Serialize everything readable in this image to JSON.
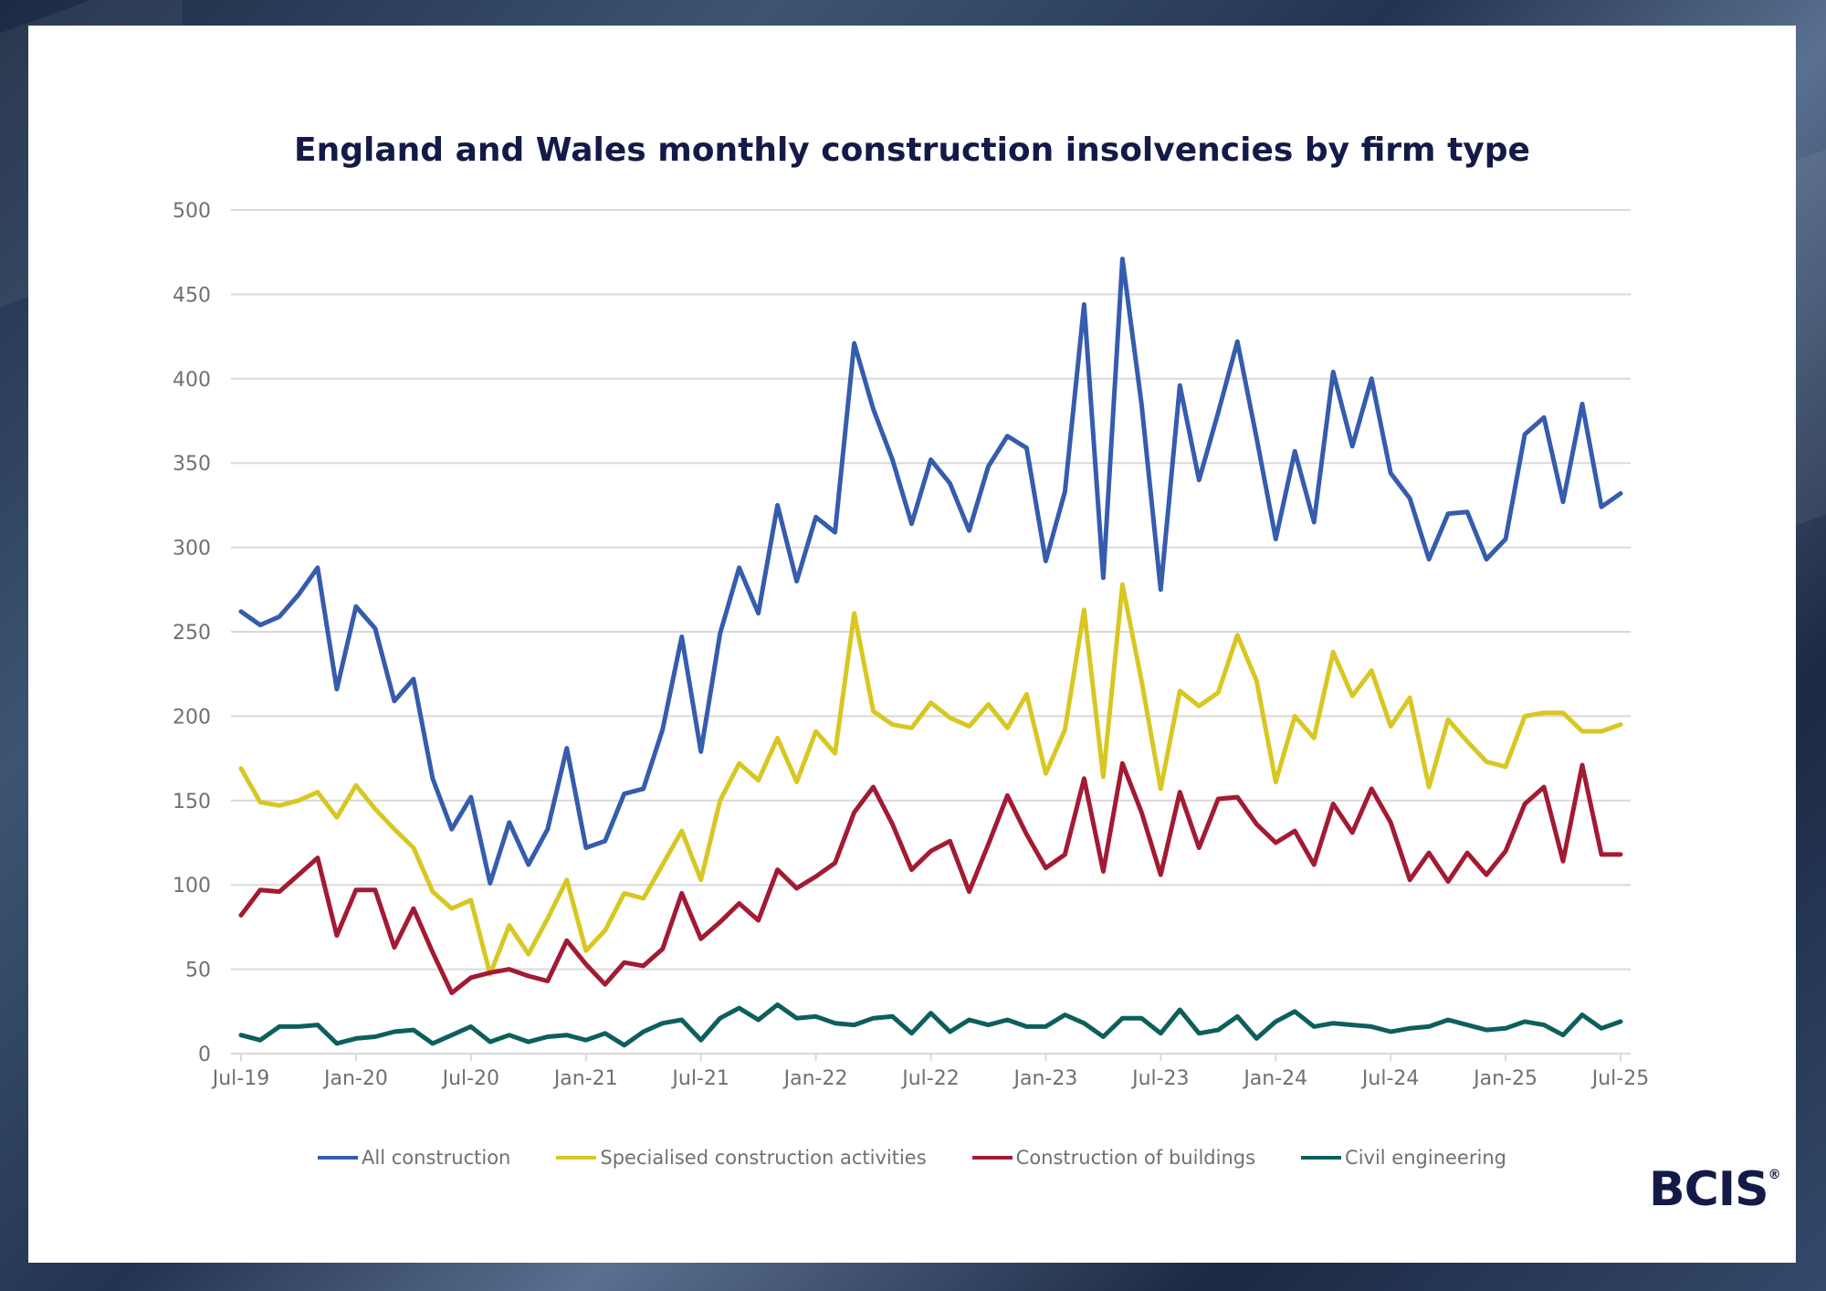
{
  "logo": {
    "text": "BCIS",
    "mark": "®"
  },
  "chart_data": {
    "type": "line",
    "title": "England and Wales monthly construction insolvencies by firm type",
    "xlabel": "",
    "ylabel": "",
    "ylim": [
      0,
      500
    ],
    "yticks": [
      0,
      50,
      100,
      150,
      200,
      250,
      300,
      350,
      400,
      450,
      500
    ],
    "grid": true,
    "legend": "bottom",
    "x_start": "Jul-19",
    "x_end": "Jul-25",
    "xtick_labels": [
      "Jul-19",
      "Jan-20",
      "Jul-20",
      "Jan-21",
      "Jul-21",
      "Jan-22",
      "Jul-22",
      "Jan-23",
      "Jul-23",
      "Jan-24",
      "Jul-24",
      "Jan-25",
      "Jul-25"
    ],
    "series": [
      {
        "name": "All construction",
        "color": "#355cad",
        "values": [
          262,
          254,
          259,
          272,
          288,
          216,
          265,
          252,
          209,
          222,
          163,
          133,
          152,
          101,
          137,
          112,
          133,
          181,
          122,
          126,
          154,
          157,
          192,
          247,
          179,
          249,
          288,
          261,
          325,
          280,
          318,
          309,
          421,
          382,
          352,
          314,
          352,
          338,
          310,
          348,
          366,
          359,
          292,
          333,
          444,
          282,
          471,
          385,
          275,
          396,
          340,
          380,
          422,
          365,
          305,
          357,
          315,
          404,
          360,
          400,
          344,
          329,
          293,
          320,
          321,
          293,
          305,
          367,
          377,
          327,
          385,
          324,
          332
        ]
      },
      {
        "name": "Specialised construction activities",
        "color": "#d8c722",
        "values": [
          169,
          149,
          147,
          150,
          155,
          140,
          159,
          145,
          133,
          122,
          96,
          86,
          91,
          47,
          76,
          59,
          80,
          103,
          61,
          73,
          95,
          92,
          112,
          132,
          103,
          150,
          172,
          162,
          187,
          161,
          191,
          178,
          261,
          203,
          195,
          193,
          208,
          199,
          194,
          207,
          193,
          213,
          166,
          192,
          263,
          164,
          278,
          221,
          157,
          215,
          206,
          214,
          248,
          221,
          161,
          200,
          187,
          238,
          212,
          227,
          194,
          211,
          158,
          198,
          185,
          173,
          170,
          200,
          202,
          202,
          191,
          191,
          195
        ]
      },
      {
        "name": "Construction of buildings",
        "color": "#a31a33",
        "values": [
          82,
          97,
          96,
          106,
          116,
          70,
          97,
          97,
          63,
          86,
          60,
          36,
          45,
          48,
          50,
          46,
          43,
          67,
          53,
          41,
          54,
          52,
          62,
          95,
          68,
          78,
          89,
          79,
          109,
          98,
          105,
          113,
          143,
          158,
          136,
          109,
          120,
          126,
          96,
          124,
          153,
          130,
          110,
          118,
          163,
          108,
          172,
          143,
          106,
          155,
          122,
          151,
          152,
          136,
          125,
          132,
          112,
          148,
          131,
          157,
          137,
          103,
          119,
          102,
          119,
          106,
          120,
          148,
          158,
          114,
          171,
          118,
          118
        ]
      },
      {
        "name": "Civil engineering",
        "color": "#0d5f5c",
        "values": [
          11,
          8,
          16,
          16,
          17,
          6,
          9,
          10,
          13,
          14,
          6,
          11,
          16,
          7,
          11,
          7,
          10,
          11,
          8,
          12,
          5,
          13,
          18,
          20,
          8,
          21,
          27,
          20,
          29,
          21,
          22,
          18,
          17,
          21,
          22,
          12,
          24,
          13,
          20,
          17,
          20,
          16,
          16,
          23,
          18,
          10,
          21,
          21,
          12,
          26,
          12,
          14,
          22,
          9,
          19,
          25,
          16,
          18,
          17,
          16,
          13,
          15,
          16,
          20,
          17,
          14,
          15,
          19,
          17,
          11,
          23,
          15,
          19
        ]
      }
    ]
  }
}
